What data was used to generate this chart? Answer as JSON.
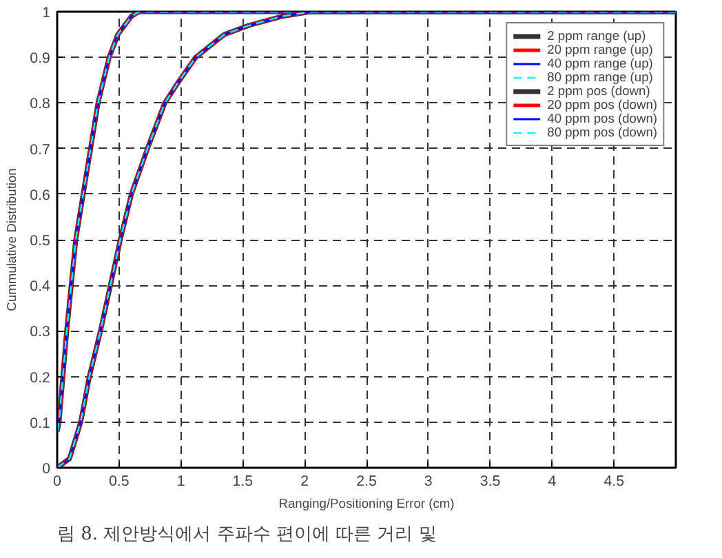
{
  "chart_data": {
    "type": "line",
    "xlabel": "Ranging/Positioning Error (cm)",
    "ylabel": "Cummulative Distribution",
    "xlim": [
      0,
      5
    ],
    "ylim": [
      0,
      1
    ],
    "xticks": [
      0,
      0.5,
      1,
      1.5,
      2,
      2.5,
      3,
      3.5,
      4,
      4.5
    ],
    "yticks": [
      0,
      0.1,
      0.2,
      0.3,
      0.4,
      0.5,
      0.6,
      0.7,
      0.8,
      0.9,
      1
    ],
    "grid": true,
    "legend": "top right",
    "annotations": [
      "림 8. 제안방식에서 주파수 편이에 따른 거리 및"
    ],
    "series": [
      {
        "name": "2 ppm range (up)",
        "color": "#333333",
        "line_style": "solid",
        "x": [
          0,
          0.015,
          0.077,
          0.15,
          0.27,
          0.33,
          0.42,
          0.49,
          0.6,
          0.66,
          5
        ],
        "values": [
          0.08,
          0.1,
          0.3,
          0.5,
          0.7,
          0.8,
          0.9,
          0.95,
          0.99,
          1,
          1
        ]
      },
      {
        "name": "20 ppm range (up)",
        "color": "#ff0000",
        "line_style": "solid",
        "x": [
          0,
          0.015,
          0.077,
          0.15,
          0.27,
          0.33,
          0.42,
          0.49,
          0.6,
          0.66,
          5
        ],
        "values": [
          0.08,
          0.1,
          0.3,
          0.5,
          0.7,
          0.8,
          0.9,
          0.95,
          0.99,
          1,
          1
        ]
      },
      {
        "name": "40 ppm range (up)",
        "color": "#0000ff",
        "line_style": "solid",
        "x": [
          0,
          0.015,
          0.077,
          0.15,
          0.27,
          0.33,
          0.42,
          0.49,
          0.6,
          0.66,
          5
        ],
        "values": [
          0.08,
          0.1,
          0.3,
          0.5,
          0.7,
          0.8,
          0.9,
          0.95,
          0.99,
          1,
          1
        ]
      },
      {
        "name": "80 ppm range (up)",
        "color": "#00ffff",
        "line_style": "dashed",
        "x": [
          0,
          0.015,
          0.077,
          0.15,
          0.27,
          0.33,
          0.42,
          0.49,
          0.6,
          0.66,
          5
        ],
        "values": [
          0.08,
          0.1,
          0.3,
          0.5,
          0.7,
          0.8,
          0.9,
          0.95,
          0.99,
          1,
          1
        ]
      },
      {
        "name": "2 ppm pos (down)",
        "color": "#333333",
        "line_style": "solid",
        "x": [
          0,
          0.1,
          0.19,
          0.26,
          0.35,
          0.43,
          0.51,
          0.6,
          0.73,
          0.87,
          0.99,
          1.12,
          1.35,
          1.55,
          1.82,
          2.05,
          5
        ],
        "values": [
          0,
          0.02,
          0.1,
          0.2,
          0.3,
          0.4,
          0.5,
          0.6,
          0.7,
          0.8,
          0.85,
          0.9,
          0.95,
          0.97,
          0.99,
          1,
          1
        ]
      },
      {
        "name": "20 ppm pos (down)",
        "color": "#ff0000",
        "line_style": "solid",
        "x": [
          0,
          0.1,
          0.19,
          0.26,
          0.35,
          0.43,
          0.51,
          0.6,
          0.73,
          0.87,
          0.99,
          1.12,
          1.35,
          1.55,
          1.82,
          2.05,
          5
        ],
        "values": [
          0,
          0.02,
          0.1,
          0.2,
          0.3,
          0.4,
          0.5,
          0.6,
          0.7,
          0.8,
          0.85,
          0.9,
          0.95,
          0.97,
          0.99,
          1,
          1
        ]
      },
      {
        "name": "40 ppm pos (down)",
        "color": "#0000ff",
        "line_style": "solid",
        "x": [
          0,
          0.1,
          0.19,
          0.26,
          0.35,
          0.43,
          0.51,
          0.6,
          0.73,
          0.87,
          0.99,
          1.12,
          1.35,
          1.55,
          1.82,
          2.05,
          5
        ],
        "values": [
          0,
          0.02,
          0.1,
          0.2,
          0.3,
          0.4,
          0.5,
          0.6,
          0.7,
          0.8,
          0.85,
          0.9,
          0.95,
          0.97,
          0.99,
          1,
          1
        ]
      },
      {
        "name": "80 ppm pos (down)",
        "color": "#00ffff",
        "line_style": "dashed",
        "x": [
          0,
          0.1,
          0.19,
          0.26,
          0.35,
          0.43,
          0.51,
          0.6,
          0.73,
          0.87,
          0.99,
          1.12,
          1.35,
          1.55,
          1.82,
          2.05,
          5
        ],
        "values": [
          0,
          0.02,
          0.1,
          0.2,
          0.3,
          0.4,
          0.5,
          0.6,
          0.7,
          0.8,
          0.85,
          0.9,
          0.95,
          0.97,
          0.99,
          1,
          1
        ]
      }
    ]
  }
}
